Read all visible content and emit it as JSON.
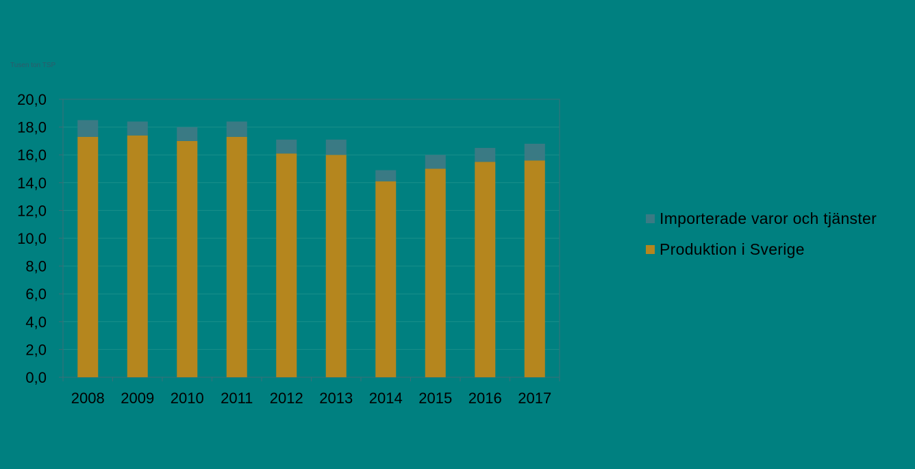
{
  "colors": {
    "background": "#008080",
    "import": "#3a7a84",
    "production": "#b5861e",
    "axis": "#3b6f78",
    "grid": "#1a8f8a",
    "unit_text": "#2e5a6a"
  },
  "chart_data": {
    "type": "bar",
    "stacked": true,
    "unit_label": "Tusen ton TSP",
    "categories": [
      "2008",
      "2009",
      "2010",
      "2011",
      "2012",
      "2013",
      "2014",
      "2015",
      "2016",
      "2017"
    ],
    "series": [
      {
        "name": "Produktion i Sverige",
        "color": "#b5861e",
        "values": [
          17.3,
          17.4,
          17.0,
          17.3,
          16.1,
          16.0,
          14.1,
          15.0,
          15.5,
          15.6
        ]
      },
      {
        "name": "Importerade varor och tjänster",
        "color": "#3a7a84",
        "values": [
          1.2,
          1.0,
          1.0,
          1.1,
          1.0,
          1.1,
          0.8,
          1.0,
          1.0,
          1.2
        ]
      }
    ],
    "ylim": [
      0,
      20
    ],
    "yticks": [
      "0,0",
      "2,0",
      "4,0",
      "6,0",
      "8,0",
      "10,0",
      "12,0",
      "14,0",
      "16,0",
      "18,0",
      "20,0"
    ],
    "grid": true,
    "legend_position": "right"
  },
  "legend": {
    "items": [
      {
        "label": "Importerade varor och tjänster",
        "color": "#3a7a84"
      },
      {
        "label": "Produktion i Sverige",
        "color": "#b5861e"
      }
    ]
  }
}
